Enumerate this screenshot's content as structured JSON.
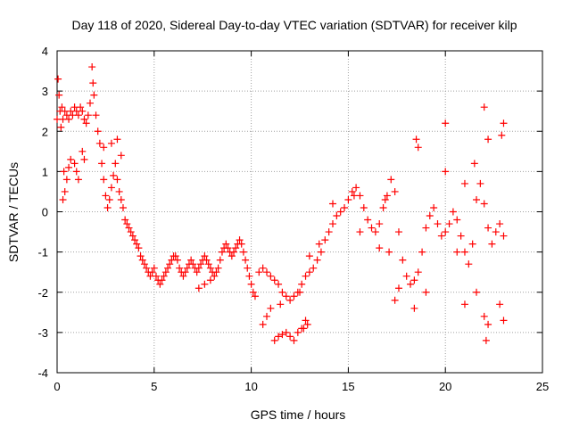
{
  "chart_data": {
    "type": "scatter",
    "title": "Day 118 of 2020, Sidereal Day-to-day VTEC variation (SDTVAR) for receiver kilp",
    "xlabel": "GPS time / hours",
    "ylabel": "SDTVAR / TECUs",
    "xlim": [
      0,
      25
    ],
    "ylim": [
      -4,
      4
    ],
    "xticks": [
      0,
      5,
      10,
      15,
      20,
      25
    ],
    "yticks": [
      -4,
      -3,
      -2,
      -1,
      0,
      1,
      2,
      3,
      4
    ],
    "xtick_labels": [
      "0",
      "5",
      "10",
      "15",
      "20",
      "25"
    ],
    "ytick_labels": [
      "-4",
      "-3",
      "-2",
      "-1",
      "0",
      "1",
      "2",
      "3",
      "4"
    ],
    "grid": true,
    "marker": "+",
    "series_color": "#ff0000",
    "series": [
      {
        "name": "SDTVAR",
        "points": [
          [
            0.0,
            2.3
          ],
          [
            0.05,
            3.3
          ],
          [
            0.1,
            2.9
          ],
          [
            0.15,
            2.5
          ],
          [
            0.2,
            2.1
          ],
          [
            0.25,
            2.6
          ],
          [
            0.3,
            2.3
          ],
          [
            0.4,
            2.5
          ],
          [
            0.5,
            2.4
          ],
          [
            0.6,
            2.3
          ],
          [
            0.7,
            2.5
          ],
          [
            0.8,
            2.4
          ],
          [
            0.9,
            2.6
          ],
          [
            1.0,
            2.5
          ],
          [
            1.1,
            2.4
          ],
          [
            1.2,
            2.6
          ],
          [
            1.3,
            2.5
          ],
          [
            1.4,
            2.3
          ],
          [
            1.5,
            2.2
          ],
          [
            1.6,
            2.4
          ],
          [
            1.7,
            2.7
          ],
          [
            1.8,
            3.6
          ],
          [
            1.85,
            3.2
          ],
          [
            1.9,
            2.9
          ],
          [
            2.0,
            2.4
          ],
          [
            2.1,
            2.0
          ],
          [
            2.2,
            1.7
          ],
          [
            2.3,
            1.2
          ],
          [
            2.4,
            0.8
          ],
          [
            2.5,
            0.4
          ],
          [
            2.6,
            0.1
          ],
          [
            2.7,
            0.3
          ],
          [
            2.8,
            0.6
          ],
          [
            2.9,
            0.9
          ],
          [
            3.0,
            1.2
          ],
          [
            3.1,
            0.8
          ],
          [
            3.2,
            0.5
          ],
          [
            3.3,
            0.3
          ],
          [
            3.4,
            0.1
          ],
          [
            3.5,
            -0.2
          ],
          [
            3.6,
            -0.3
          ],
          [
            3.7,
            -0.4
          ],
          [
            3.8,
            -0.5
          ],
          [
            3.9,
            -0.6
          ],
          [
            4.0,
            -0.7
          ],
          [
            4.1,
            -0.8
          ],
          [
            4.2,
            -0.9
          ],
          [
            4.3,
            -1.1
          ],
          [
            4.4,
            -1.2
          ],
          [
            4.5,
            -1.3
          ],
          [
            4.6,
            -1.4
          ],
          [
            4.7,
            -1.5
          ],
          [
            4.8,
            -1.6
          ],
          [
            4.9,
            -1.5
          ],
          [
            5.0,
            -1.4
          ],
          [
            5.1,
            -1.6
          ],
          [
            5.2,
            -1.7
          ],
          [
            5.3,
            -1.8
          ],
          [
            5.4,
            -1.7
          ],
          [
            5.5,
            -1.6
          ],
          [
            5.6,
            -1.5
          ],
          [
            5.7,
            -1.4
          ],
          [
            5.8,
            -1.3
          ],
          [
            5.9,
            -1.2
          ],
          [
            6.0,
            -1.1
          ],
          [
            6.1,
            -1.1
          ],
          [
            6.2,
            -1.2
          ],
          [
            6.3,
            -1.4
          ],
          [
            6.4,
            -1.5
          ],
          [
            6.5,
            -1.6
          ],
          [
            6.6,
            -1.5
          ],
          [
            6.7,
            -1.4
          ],
          [
            6.8,
            -1.3
          ],
          [
            6.9,
            -1.2
          ],
          [
            7.0,
            -1.3
          ],
          [
            7.1,
            -1.4
          ],
          [
            7.2,
            -1.5
          ],
          [
            7.3,
            -1.4
          ],
          [
            7.4,
            -1.3
          ],
          [
            7.5,
            -1.2
          ],
          [
            7.6,
            -1.1
          ],
          [
            7.7,
            -1.2
          ],
          [
            7.8,
            -1.3
          ],
          [
            7.9,
            -1.4
          ],
          [
            8.0,
            -1.5
          ],
          [
            8.1,
            -1.6
          ],
          [
            8.2,
            -1.5
          ],
          [
            8.3,
            -1.4
          ],
          [
            8.4,
            -1.2
          ],
          [
            8.5,
            -1.0
          ],
          [
            8.6,
            -0.9
          ],
          [
            8.7,
            -0.8
          ],
          [
            8.8,
            -0.9
          ],
          [
            8.9,
            -1.0
          ],
          [
            9.0,
            -1.1
          ],
          [
            9.1,
            -1.0
          ],
          [
            9.2,
            -0.9
          ],
          [
            9.3,
            -0.8
          ],
          [
            9.4,
            -0.7
          ],
          [
            9.5,
            -0.8
          ],
          [
            9.6,
            -1.0
          ],
          [
            9.7,
            -1.2
          ],
          [
            9.8,
            -1.4
          ],
          [
            9.9,
            -1.6
          ],
          [
            10.0,
            -1.8
          ],
          [
            10.1,
            -2.0
          ],
          [
            10.2,
            -2.1
          ],
          [
            7.3,
            -1.9
          ],
          [
            7.6,
            -1.8
          ],
          [
            7.9,
            -1.7
          ],
          [
            10.4,
            -1.5
          ],
          [
            10.6,
            -1.4
          ],
          [
            10.8,
            -1.5
          ],
          [
            11.0,
            -1.6
          ],
          [
            11.2,
            -1.7
          ],
          [
            11.4,
            -1.8
          ],
          [
            11.6,
            -2.0
          ],
          [
            11.8,
            -2.1
          ],
          [
            12.0,
            -2.2
          ],
          [
            12.2,
            -2.1
          ],
          [
            12.4,
            -2.0
          ],
          [
            12.6,
            -1.8
          ],
          [
            12.8,
            -1.6
          ],
          [
            13.0,
            -1.5
          ],
          [
            13.2,
            -1.4
          ],
          [
            13.4,
            -1.2
          ],
          [
            13.6,
            -1.0
          ],
          [
            13.8,
            -0.7
          ],
          [
            14.0,
            -0.5
          ],
          [
            14.2,
            -0.3
          ],
          [
            14.4,
            -0.1
          ],
          [
            14.6,
            0.0
          ],
          [
            14.8,
            0.1
          ],
          [
            15.0,
            0.3
          ],
          [
            15.2,
            0.5
          ],
          [
            15.4,
            0.6
          ],
          [
            15.6,
            0.4
          ],
          [
            15.8,
            0.1
          ],
          [
            16.0,
            -0.2
          ],
          [
            16.2,
            -0.4
          ],
          [
            16.4,
            -0.5
          ],
          [
            16.6,
            -0.3
          ],
          [
            16.8,
            0.1
          ],
          [
            17.0,
            0.4
          ],
          [
            17.2,
            0.8
          ],
          [
            17.4,
            0.5
          ],
          [
            17.6,
            -0.5
          ],
          [
            17.8,
            -1.2
          ],
          [
            18.0,
            -1.6
          ],
          [
            18.2,
            -1.8
          ],
          [
            18.4,
            -1.7
          ],
          [
            18.6,
            -1.5
          ],
          [
            18.8,
            -1.0
          ],
          [
            19.0,
            -0.4
          ],
          [
            19.2,
            -0.1
          ],
          [
            19.4,
            0.1
          ],
          [
            19.6,
            -0.3
          ],
          [
            19.8,
            -0.6
          ],
          [
            20.0,
            -0.5
          ],
          [
            20.2,
            -0.3
          ],
          [
            20.4,
            0.0
          ],
          [
            20.6,
            -0.2
          ],
          [
            20.8,
            -0.6
          ],
          [
            21.0,
            -1.0
          ],
          [
            21.2,
            -1.3
          ],
          [
            21.4,
            -0.8
          ],
          [
            21.6,
            0.3
          ],
          [
            21.8,
            0.7
          ],
          [
            22.0,
            0.2
          ],
          [
            22.2,
            -0.4
          ],
          [
            22.4,
            -0.8
          ],
          [
            22.6,
            -0.5
          ],
          [
            22.8,
            -0.3
          ],
          [
            23.0,
            -0.6
          ],
          [
            11.2,
            -3.2
          ],
          [
            11.4,
            -3.1
          ],
          [
            11.6,
            -3.05
          ],
          [
            11.8,
            -3.0
          ],
          [
            12.0,
            -3.1
          ],
          [
            12.2,
            -3.2
          ],
          [
            12.4,
            -3.0
          ],
          [
            12.6,
            -2.9
          ],
          [
            12.7,
            -2.9
          ],
          [
            12.8,
            -2.7
          ],
          [
            12.9,
            -2.8
          ],
          [
            10.6,
            -2.8
          ],
          [
            10.8,
            -2.6
          ],
          [
            11.0,
            -2.4
          ],
          [
            11.5,
            -2.3
          ],
          [
            12.5,
            -2.0
          ],
          [
            0.3,
            0.3
          ],
          [
            0.4,
            0.5
          ],
          [
            0.5,
            0.8
          ],
          [
            0.6,
            1.1
          ],
          [
            0.7,
            1.3
          ],
          [
            0.9,
            1.2
          ],
          [
            1.0,
            1.0
          ],
          [
            1.1,
            0.8
          ],
          [
            1.3,
            1.5
          ],
          [
            1.4,
            1.3
          ],
          [
            0.35,
            1.0
          ],
          [
            18.5,
            1.8
          ],
          [
            18.6,
            1.6
          ],
          [
            20.0,
            2.2
          ],
          [
            20.0,
            1.0
          ],
          [
            22.0,
            2.6
          ],
          [
            22.2,
            1.8
          ],
          [
            23.0,
            2.2
          ],
          [
            22.9,
            1.9
          ],
          [
            21.0,
            0.7
          ],
          [
            21.5,
            1.2
          ],
          [
            22.0,
            -2.6
          ],
          [
            22.1,
            -3.2
          ],
          [
            22.2,
            -2.8
          ],
          [
            23.0,
            -2.7
          ],
          [
            22.8,
            -2.3
          ],
          [
            21.0,
            -2.3
          ],
          [
            19.0,
            -2.0
          ],
          [
            18.4,
            -2.4
          ],
          [
            17.6,
            -1.9
          ],
          [
            17.4,
            -2.2
          ],
          [
            21.6,
            -2.0
          ],
          [
            20.6,
            -1.0
          ],
          [
            16.6,
            -0.9
          ],
          [
            16.9,
            0.3
          ],
          [
            17.1,
            -1.0
          ],
          [
            15.6,
            -0.5
          ],
          [
            15.3,
            0.4
          ],
          [
            14.2,
            0.2
          ],
          [
            13.0,
            -1.1
          ],
          [
            13.5,
            -0.8
          ],
          [
            3.1,
            1.8
          ],
          [
            3.3,
            1.4
          ],
          [
            2.8,
            1.7
          ],
          [
            2.4,
            1.6
          ]
        ]
      }
    ]
  }
}
